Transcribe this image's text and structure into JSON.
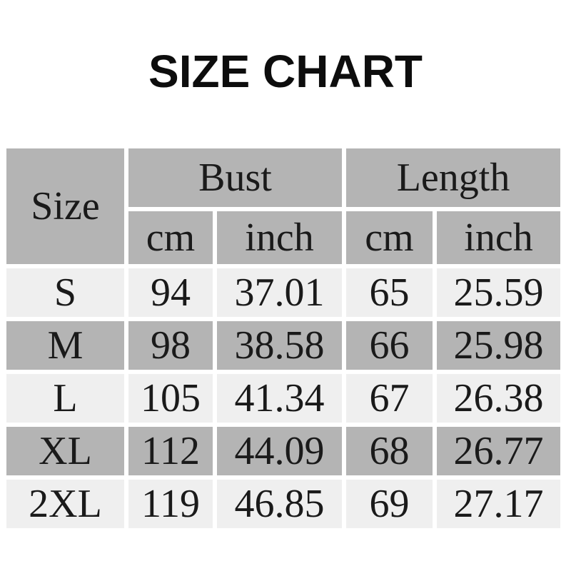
{
  "title": "SIZE CHART",
  "table": {
    "header": {
      "size_label": "Size",
      "groups": [
        {
          "label": "Bust",
          "sub": [
            "cm",
            "inch"
          ]
        },
        {
          "label": "Length",
          "sub": [
            "cm",
            "inch"
          ]
        }
      ]
    },
    "rows": [
      {
        "size": "S",
        "bust_cm": "94",
        "bust_inch": "37.01",
        "length_cm": "65",
        "length_inch": "25.59"
      },
      {
        "size": "M",
        "bust_cm": "98",
        "bust_inch": "38.58",
        "length_cm": "66",
        "length_inch": "25.98"
      },
      {
        "size": "L",
        "bust_cm": "105",
        "bust_inch": "41.34",
        "length_cm": "67",
        "length_inch": "26.38"
      },
      {
        "size": "XL",
        "bust_cm": "112",
        "bust_inch": "44.09",
        "length_cm": "68",
        "length_inch": "26.77"
      },
      {
        "size": "2XL",
        "bust_cm": "119",
        "bust_inch": "46.85",
        "length_cm": "69",
        "length_inch": "27.17"
      }
    ]
  },
  "chart_data": {
    "type": "table",
    "title": "SIZE CHART",
    "columns": [
      "Size",
      "Bust cm",
      "Bust inch",
      "Length cm",
      "Length inch"
    ],
    "rows": [
      [
        "S",
        94,
        37.01,
        65,
        25.59
      ],
      [
        "M",
        98,
        38.58,
        66,
        25.98
      ],
      [
        "L",
        105,
        41.34,
        67,
        26.38
      ],
      [
        "XL",
        112,
        44.09,
        68,
        26.77
      ],
      [
        "2XL",
        119,
        46.85,
        69,
        27.17
      ]
    ]
  },
  "colors": {
    "background": "#ffffff",
    "header_bg": "#b4b4b4",
    "row_dark_bg": "#b4b4b4",
    "row_light_bg": "#efefef",
    "gridline": "#ffffff",
    "text": "#1a1a1a",
    "title_text": "#0d0d0d"
  }
}
